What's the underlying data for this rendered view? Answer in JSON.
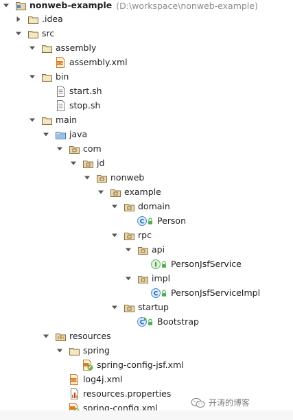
{
  "project_tree": {
    "root": {
      "label": "nonweb-example",
      "path": "(D:\\workspace\\nonweb-example)"
    },
    "items": [
      {
        "label": ".idea",
        "icon": "folder-icon",
        "expanded": false,
        "depth": 1
      },
      {
        "label": "src",
        "icon": "folder-icon",
        "expanded": true,
        "depth": 1
      },
      {
        "label": "assembly",
        "icon": "folder-icon",
        "expanded": true,
        "depth": 2
      },
      {
        "label": "assembly.xml",
        "icon": "xml-file-icon",
        "depth": 3
      },
      {
        "label": "bin",
        "icon": "folder-icon",
        "expanded": true,
        "depth": 2
      },
      {
        "label": "start.sh",
        "icon": "text-file-icon",
        "depth": 3
      },
      {
        "label": "stop.sh",
        "icon": "text-file-icon",
        "depth": 3
      },
      {
        "label": "main",
        "icon": "folder-icon",
        "expanded": true,
        "depth": 2
      },
      {
        "label": "java",
        "icon": "source-folder-icon",
        "expanded": true,
        "depth": 3
      },
      {
        "label": "com",
        "icon": "package-icon",
        "expanded": true,
        "depth": 4
      },
      {
        "label": "jd",
        "icon": "package-icon",
        "expanded": true,
        "depth": 5
      },
      {
        "label": "nonweb",
        "icon": "package-icon",
        "expanded": true,
        "depth": 6
      },
      {
        "label": "example",
        "icon": "package-icon",
        "expanded": true,
        "depth": 7
      },
      {
        "label": "domain",
        "icon": "package-icon",
        "expanded": true,
        "depth": 8
      },
      {
        "label": "Person",
        "icon": "class-icon",
        "depth": 9
      },
      {
        "label": "rpc",
        "icon": "package-icon",
        "expanded": true,
        "depth": 8
      },
      {
        "label": "api",
        "icon": "package-icon",
        "expanded": true,
        "depth": 9
      },
      {
        "label": "PersonJsfService",
        "icon": "interface-icon",
        "depth": 10
      },
      {
        "label": "impl",
        "icon": "package-icon",
        "expanded": true,
        "depth": 9
      },
      {
        "label": "PersonJsfServiceImpl",
        "icon": "class-icon",
        "depth": 10
      },
      {
        "label": "startup",
        "icon": "package-icon",
        "expanded": true,
        "depth": 8
      },
      {
        "label": "Bootstrap",
        "icon": "runnable-class-icon",
        "depth": 9
      },
      {
        "label": "resources",
        "icon": "resources-folder-icon",
        "expanded": true,
        "depth": 3
      },
      {
        "label": "spring",
        "icon": "folder-icon",
        "expanded": true,
        "depth": 4
      },
      {
        "label": "spring-config-jsf.xml",
        "icon": "spring-xml-icon",
        "depth": 5
      },
      {
        "label": "log4j.xml",
        "icon": "xml-file-icon",
        "depth": 4
      },
      {
        "label": "resources.properties",
        "icon": "properties-file-icon",
        "depth": 4
      },
      {
        "label": "spring-config.xml",
        "icon": "spring-xml-icon",
        "depth": 4
      }
    ]
  },
  "watermark": {
    "text": "开涛的博客",
    "icon": "wechat-icon"
  },
  "colors": {
    "folder": "#c9a86a",
    "folder_dark": "#8a6d3b",
    "source_folder": "#6fa6d6",
    "class_badge": "#4a8fd6",
    "interface_badge": "#5cb85c",
    "lock": "#4caf50",
    "arrow": "#555555"
  }
}
